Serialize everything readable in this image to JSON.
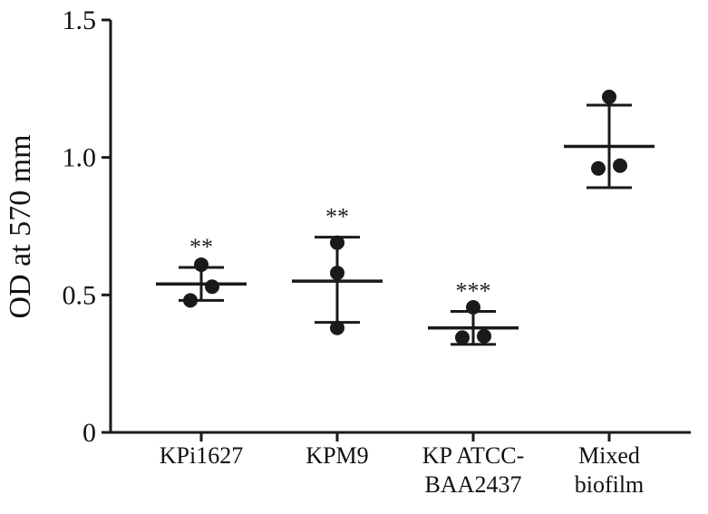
{
  "chart_data": {
    "type": "scatter",
    "title": "",
    "xlabel": "",
    "ylabel": "OD at 570 mm",
    "ylim": [
      0,
      1.5
    ],
    "yticks": [
      "0",
      "0.5",
      "1.0",
      "1.5"
    ],
    "ytick_values": [
      0,
      0.5,
      1.0,
      1.5
    ],
    "grid": false,
    "categories": [
      {
        "label": [
          "KPi1627"
        ],
        "points": [
          0.61,
          0.53,
          0.48
        ],
        "mean": 0.54,
        "err_high": 0.6,
        "err_low": 0.48,
        "significance": "**"
      },
      {
        "label": [
          "KPM9"
        ],
        "points": [
          0.69,
          0.58,
          0.38
        ],
        "mean": 0.55,
        "err_high": 0.71,
        "err_low": 0.4,
        "significance": "**"
      },
      {
        "label": [
          "KP ATCC-",
          "BAA2437"
        ],
        "points": [
          0.455,
          0.345,
          0.35
        ],
        "mean": 0.38,
        "err_high": 0.44,
        "err_low": 0.32,
        "significance": "***"
      },
      {
        "label": [
          "Mixed",
          "biofilm"
        ],
        "points": [
          1.22,
          0.96,
          0.97
        ],
        "mean": 1.04,
        "err_high": 1.19,
        "err_low": 0.89,
        "significance": ""
      }
    ],
    "color": "#1a1a1a"
  }
}
